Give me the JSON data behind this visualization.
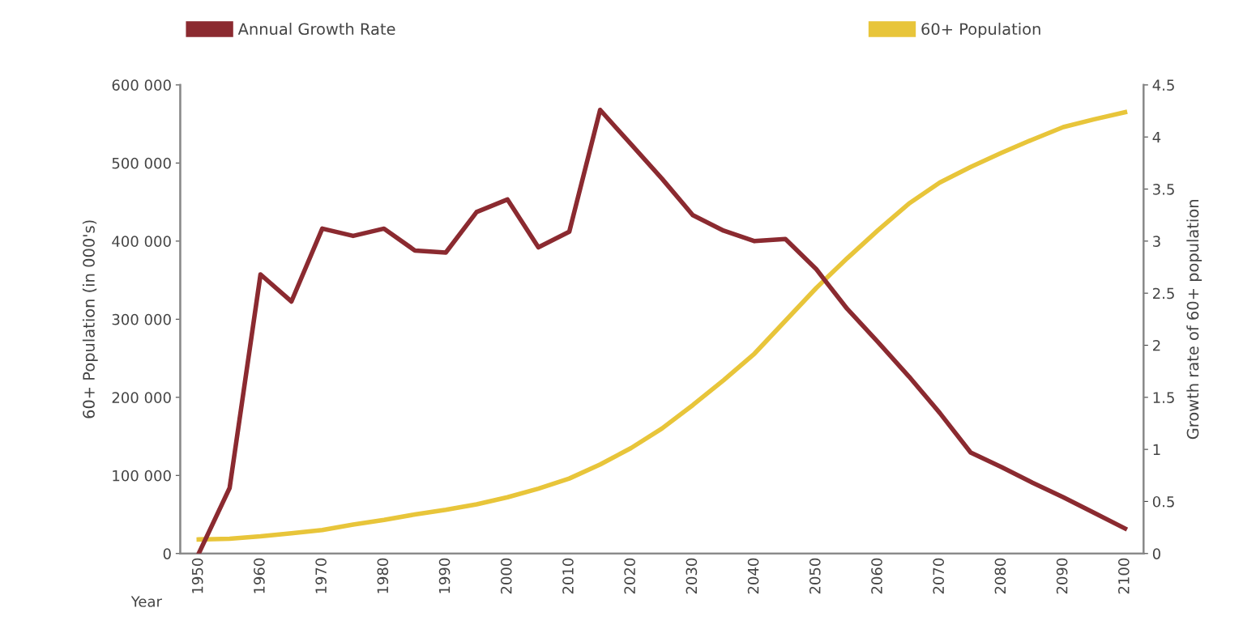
{
  "chart_data": {
    "type": "line",
    "xlabel": "Year",
    "ylabel": "60+ Population (in 000's)",
    "y2label": "Growth rate of 60+ population",
    "x": [
      1950,
      1955,
      1960,
      1965,
      1970,
      1975,
      1980,
      1985,
      1990,
      1995,
      2000,
      2005,
      2010,
      2015,
      2020,
      2025,
      2030,
      2035,
      2040,
      2045,
      2050,
      2055,
      2060,
      2065,
      2070,
      2075,
      2080,
      2085,
      2090,
      2095,
      2100
    ],
    "series": [
      {
        "name": "Annual Growth Rate",
        "color": "#8b2a30",
        "axis": "y2",
        "values": [
          0,
          0.63,
          2.68,
          2.42,
          3.12,
          3.05,
          3.12,
          2.91,
          2.89,
          3.28,
          3.4,
          2.94,
          3.09,
          4.26,
          3.93,
          3.6,
          3.25,
          3.1,
          3.0,
          3.02,
          2.73,
          2.35,
          2.03,
          1.7,
          1.35,
          0.97,
          0.83,
          0.68,
          0.54,
          0.39,
          0.24
        ]
      },
      {
        "name": "60+ Population",
        "color": "#e8c53a",
        "values": [
          18000,
          19000,
          22000,
          26000,
          30000,
          37000,
          43000,
          50000,
          56000,
          63000,
          72000,
          83000,
          96000,
          114000,
          135000,
          160000,
          190000,
          222000,
          256000,
          298000,
          340000,
          378000,
          414000,
          448000,
          475000,
          495000,
          513000,
          530000,
          546000,
          556000,
          565000
        ]
      }
    ],
    "xlim": [
      1947,
      2103
    ],
    "xticks": [
      1950,
      1960,
      1970,
      1980,
      1990,
      2000,
      2010,
      2020,
      2030,
      2040,
      2050,
      2060,
      2070,
      2080,
      2090,
      2100
    ],
    "ylim": [
      0,
      600000
    ],
    "yticks": [
      0,
      {
        "value": 100000,
        "label": "100 000"
      },
      {
        "value": 200000,
        "label": "200 000"
      },
      {
        "value": 300000,
        "label": "300 000"
      },
      {
        "value": 400000,
        "label": "400 000"
      },
      {
        "value": 500000,
        "label": "500 000"
      },
      {
        "value": 600000,
        "label": "600 000"
      }
    ],
    "y2lim": [
      0,
      4.5
    ],
    "y2ticks": [
      0,
      0.5,
      1,
      1.5,
      2,
      2.5,
      3,
      3.5,
      4,
      4.5
    ],
    "legend": "top",
    "grid": false,
    "marker": "none",
    "line_style": "solid"
  }
}
